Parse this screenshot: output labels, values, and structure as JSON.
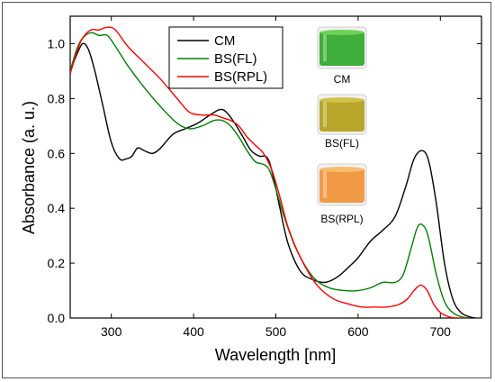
{
  "chart_data": {
    "type": "line",
    "title": "",
    "xlabel": "Wavelength [nm]",
    "ylabel": "Absorbance (a. u.)",
    "xlim": [
      250,
      750
    ],
    "ylim": [
      0,
      1.1
    ],
    "x_ticks": [
      300,
      400,
      500,
      600,
      700
    ],
    "y_ticks": [
      0.0,
      0.2,
      0.4,
      0.6,
      0.8,
      1.0
    ],
    "x_tick_labels": [
      "300",
      "400",
      "500",
      "600",
      "700"
    ],
    "y_tick_labels": [
      "0.0",
      "0.2",
      "0.4",
      "0.6",
      "0.8",
      "1.0"
    ],
    "grid": false,
    "legend": "top-center",
    "series": [
      {
        "name": "CM",
        "color": "#000000",
        "x": [
          250,
          258,
          265,
          272,
          280,
          290,
          300,
          310,
          318,
          325,
          332,
          340,
          350,
          360,
          375,
          390,
          405,
          420,
          432,
          440,
          450,
          460,
          470,
          480,
          487,
          492,
          498,
          505,
          515,
          530,
          545,
          560,
          575,
          590,
          600,
          615,
          630,
          645,
          658,
          668,
          678,
          686,
          695,
          705,
          715,
          725,
          735,
          742
        ],
        "y": [
          0.9,
          0.96,
          1.0,
          0.98,
          0.9,
          0.77,
          0.64,
          0.58,
          0.58,
          0.59,
          0.62,
          0.61,
          0.6,
          0.62,
          0.67,
          0.69,
          0.71,
          0.74,
          0.76,
          0.75,
          0.71,
          0.66,
          0.61,
          0.59,
          0.59,
          0.57,
          0.5,
          0.4,
          0.27,
          0.17,
          0.14,
          0.13,
          0.15,
          0.19,
          0.22,
          0.28,
          0.32,
          0.37,
          0.48,
          0.58,
          0.61,
          0.57,
          0.42,
          0.2,
          0.07,
          0.02,
          0.005,
          0.0
        ]
      },
      {
        "name": "BS(FL)",
        "color": "#008000",
        "x": [
          250,
          258,
          265,
          275,
          285,
          295,
          305,
          320,
          340,
          360,
          380,
          395,
          410,
          425,
          435,
          445,
          455,
          465,
          475,
          485,
          492,
          500,
          510,
          525,
          545,
          565,
          585,
          600,
          615,
          630,
          645,
          655,
          665,
          672,
          678,
          685,
          695,
          705,
          715,
          725,
          735
        ],
        "y": [
          0.9,
          0.98,
          1.02,
          1.04,
          1.03,
          1.03,
          0.99,
          0.92,
          0.84,
          0.77,
          0.71,
          0.69,
          0.7,
          0.72,
          0.72,
          0.7,
          0.66,
          0.61,
          0.57,
          0.56,
          0.54,
          0.47,
          0.37,
          0.25,
          0.15,
          0.11,
          0.1,
          0.1,
          0.11,
          0.13,
          0.13,
          0.16,
          0.26,
          0.33,
          0.34,
          0.3,
          0.16,
          0.06,
          0.02,
          0.005,
          0.0
        ]
      },
      {
        "name": "BS(RPL)",
        "color": "#ff0000",
        "x": [
          250,
          258,
          265,
          275,
          285,
          295,
          305,
          320,
          340,
          360,
          380,
          395,
          410,
          425,
          435,
          445,
          455,
          465,
          475,
          485,
          495,
          505,
          515,
          530,
          550,
          570,
          590,
          605,
          620,
          635,
          650,
          660,
          668,
          676,
          684,
          692,
          700,
          710,
          720,
          730
        ],
        "y": [
          0.89,
          0.97,
          1.02,
          1.05,
          1.05,
          1.06,
          1.05,
          0.99,
          0.93,
          0.87,
          0.8,
          0.75,
          0.74,
          0.74,
          0.73,
          0.72,
          0.7,
          0.66,
          0.63,
          0.6,
          0.54,
          0.44,
          0.33,
          0.22,
          0.12,
          0.07,
          0.05,
          0.04,
          0.04,
          0.04,
          0.05,
          0.07,
          0.1,
          0.12,
          0.1,
          0.05,
          0.02,
          0.005,
          0.0,
          0.0
        ]
      }
    ]
  },
  "insets": [
    {
      "label": "CM",
      "liquid_color": "#3fae3a",
      "liquid_top_color": "#6fd15a"
    },
    {
      "label": "BS(FL)",
      "liquid_color": "#b8a62a",
      "liquid_top_color": "#d2c24a"
    },
    {
      "label": "BS(RPL)",
      "liquid_color": "#f09a45",
      "liquid_top_color": "#f7bd6e"
    }
  ]
}
